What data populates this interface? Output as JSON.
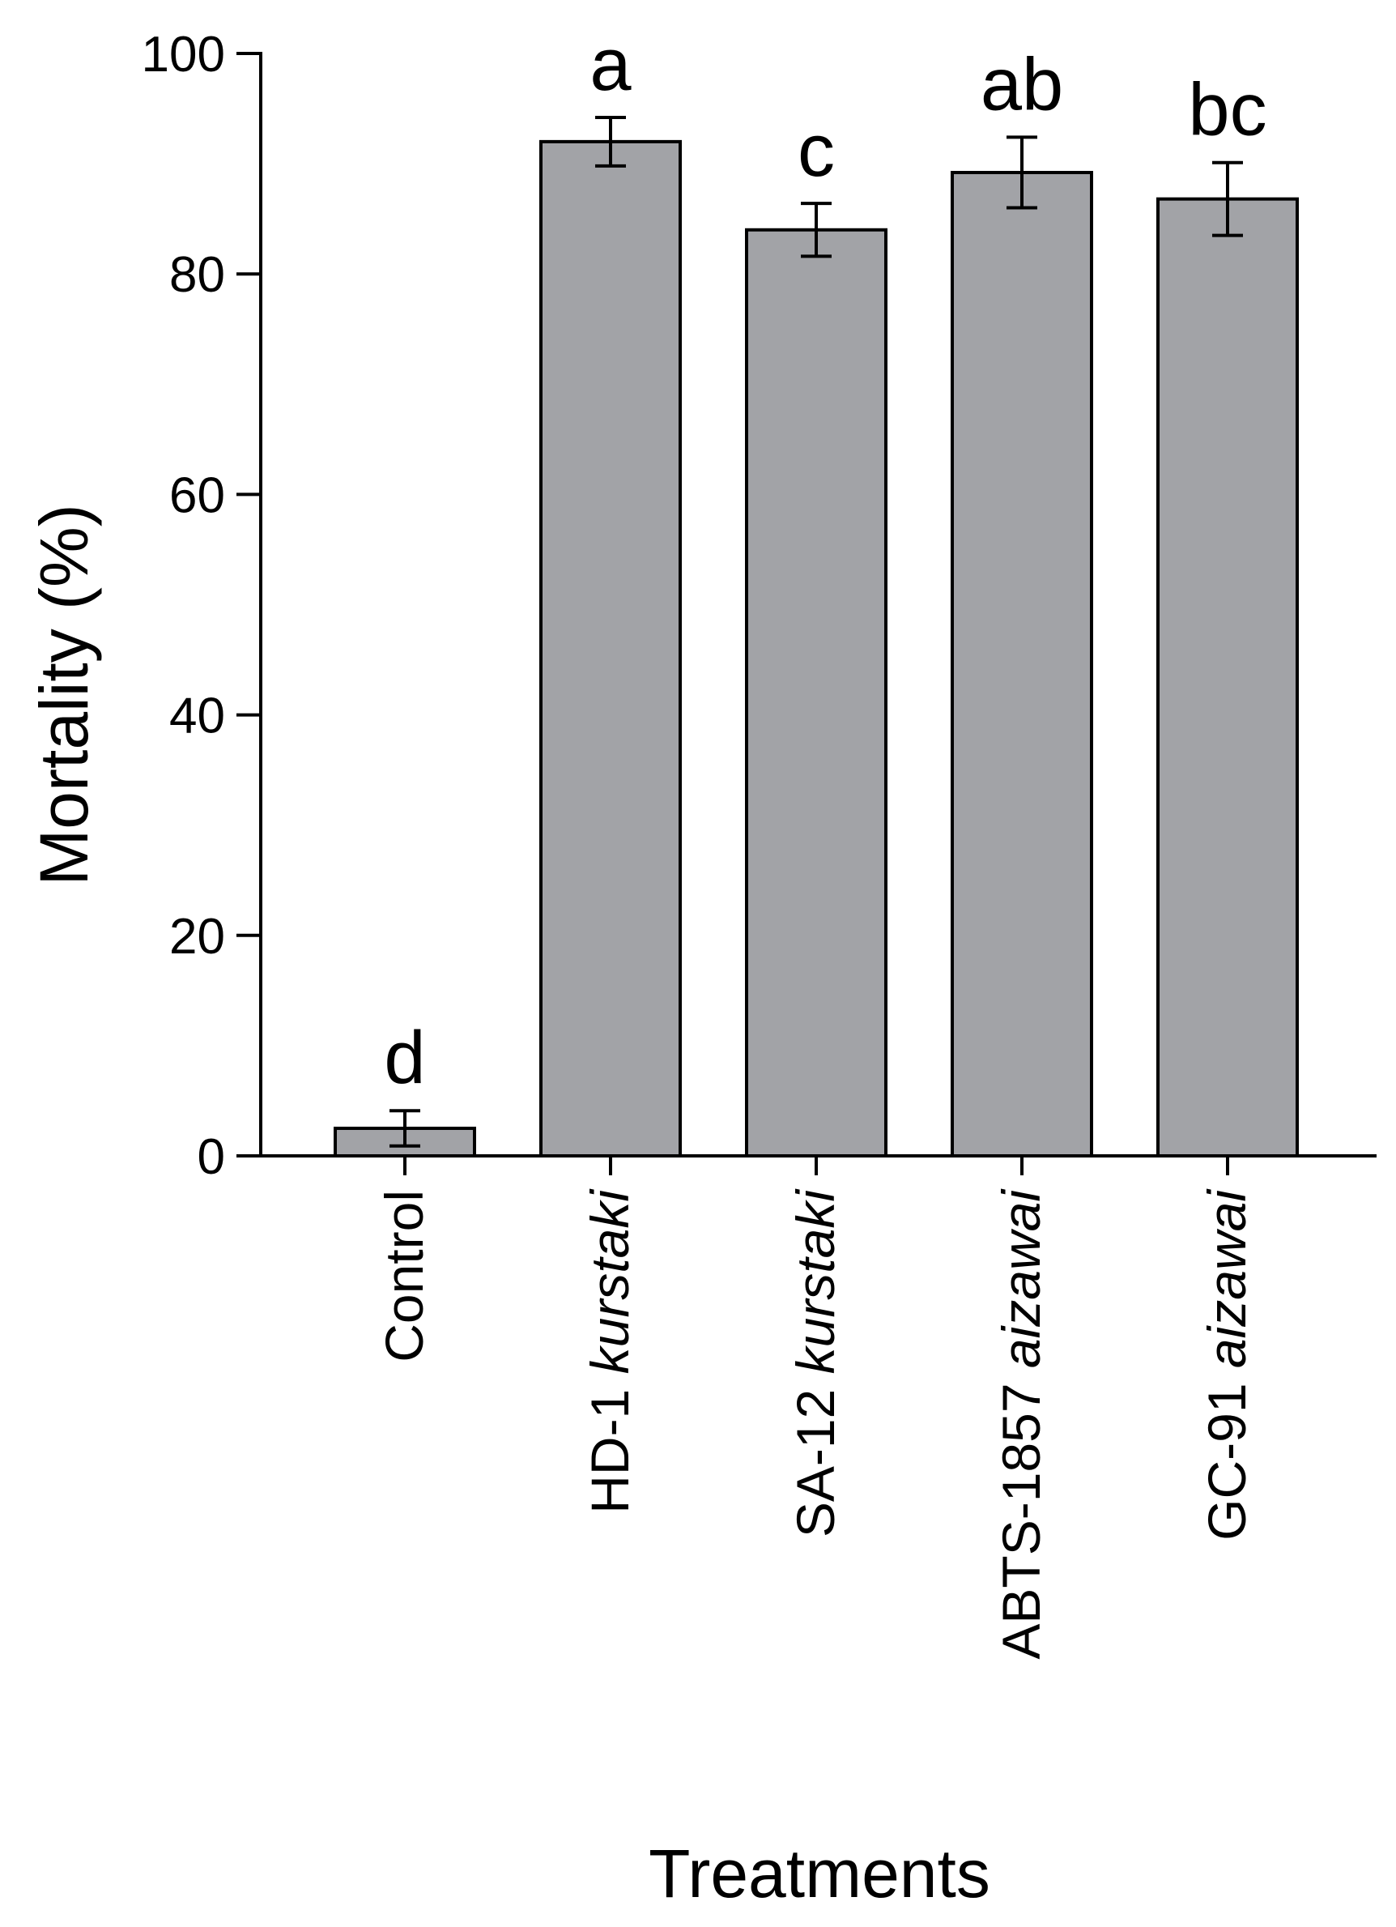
{
  "chart_data": {
    "type": "bar",
    "title": "",
    "xlabel": "Treatments",
    "ylabel": "Mortality (%)",
    "ylim": [
      0,
      100
    ],
    "yticks": [
      0,
      20,
      40,
      60,
      80,
      100
    ],
    "grid": false,
    "legend": "none",
    "categories": [
      {
        "prefix": "Control",
        "italic": ""
      },
      {
        "prefix": "HD-1 ",
        "italic": "kurstaki"
      },
      {
        "prefix": "SA-12 ",
        "italic": "kurstaki"
      },
      {
        "prefix": "ABTS-1857 ",
        "italic": "aizawai"
      },
      {
        "prefix": "GC-91 ",
        "italic": "aizawai"
      }
    ],
    "values": [
      2.5,
      92.0,
      84.0,
      89.2,
      86.8
    ],
    "error": [
      1.6,
      2.2,
      2.4,
      3.2,
      3.3
    ],
    "significance_letters": [
      "d",
      "a",
      "c",
      "ab",
      "bc"
    ],
    "colors": {
      "bar": "#a2a3a7",
      "stroke": "#000000"
    }
  }
}
